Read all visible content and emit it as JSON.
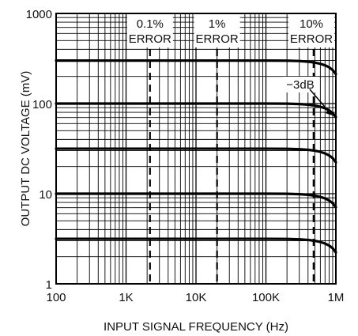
{
  "chart_data": {
    "type": "line",
    "title": "",
    "xlabel": "INPUT SIGNAL FREQUENCY (Hz)",
    "ylabel": "OUTPUT DC VOLTAGE (mV)",
    "x_scale": "log",
    "y_scale": "log",
    "xlim": [
      100,
      1000000
    ],
    "ylim": [
      1,
      1000
    ],
    "x_tick_labels": [
      "100",
      "1K",
      "10K",
      "100K",
      "1M"
    ],
    "y_tick_labels": [
      "1",
      "10",
      "100",
      "1000"
    ],
    "grid": true,
    "x": [
      100,
      1000,
      10000,
      100000,
      200000,
      300000,
      400000,
      500000,
      600000,
      700000,
      800000,
      900000,
      1000000
    ],
    "series": [
      {
        "values": [
          300,
          300,
          300,
          300,
          299.1,
          296.4,
          291.3,
          284.7,
          276.3,
          265.8,
          252.6,
          235.5,
          212.1
        ]
      },
      {
        "values": [
          100,
          100,
          100,
          100,
          99.7,
          98.8,
          97.1,
          94.9,
          92.1,
          88.6,
          84.2,
          78.5,
          70.7
        ]
      },
      {
        "values": [
          31.6,
          31.6,
          31.6,
          31.6,
          31.5,
          31.2,
          30.7,
          30.0,
          29.1,
          28.0,
          26.6,
          24.8,
          22.3
        ]
      },
      {
        "values": [
          10,
          10,
          10,
          10,
          9.97,
          9.88,
          9.71,
          9.49,
          9.21,
          8.86,
          8.42,
          7.85,
          7.07
        ]
      },
      {
        "values": [
          3.16,
          3.16,
          3.16,
          3.16,
          3.15,
          3.12,
          3.07,
          3.0,
          2.91,
          2.8,
          2.66,
          2.48,
          2.23
        ]
      }
    ],
    "error_markers": [
      {
        "label_top": "0.1%",
        "label_bottom": "ERROR",
        "frequency": 2200
      },
      {
        "label_top": "1%",
        "label_bottom": "ERROR",
        "frequency": 20000
      },
      {
        "label_top": "10%",
        "label_bottom": "ERROR",
        "frequency": 480000
      }
    ],
    "minus3db": {
      "label": "−3dB",
      "frequency": 1000000
    }
  }
}
